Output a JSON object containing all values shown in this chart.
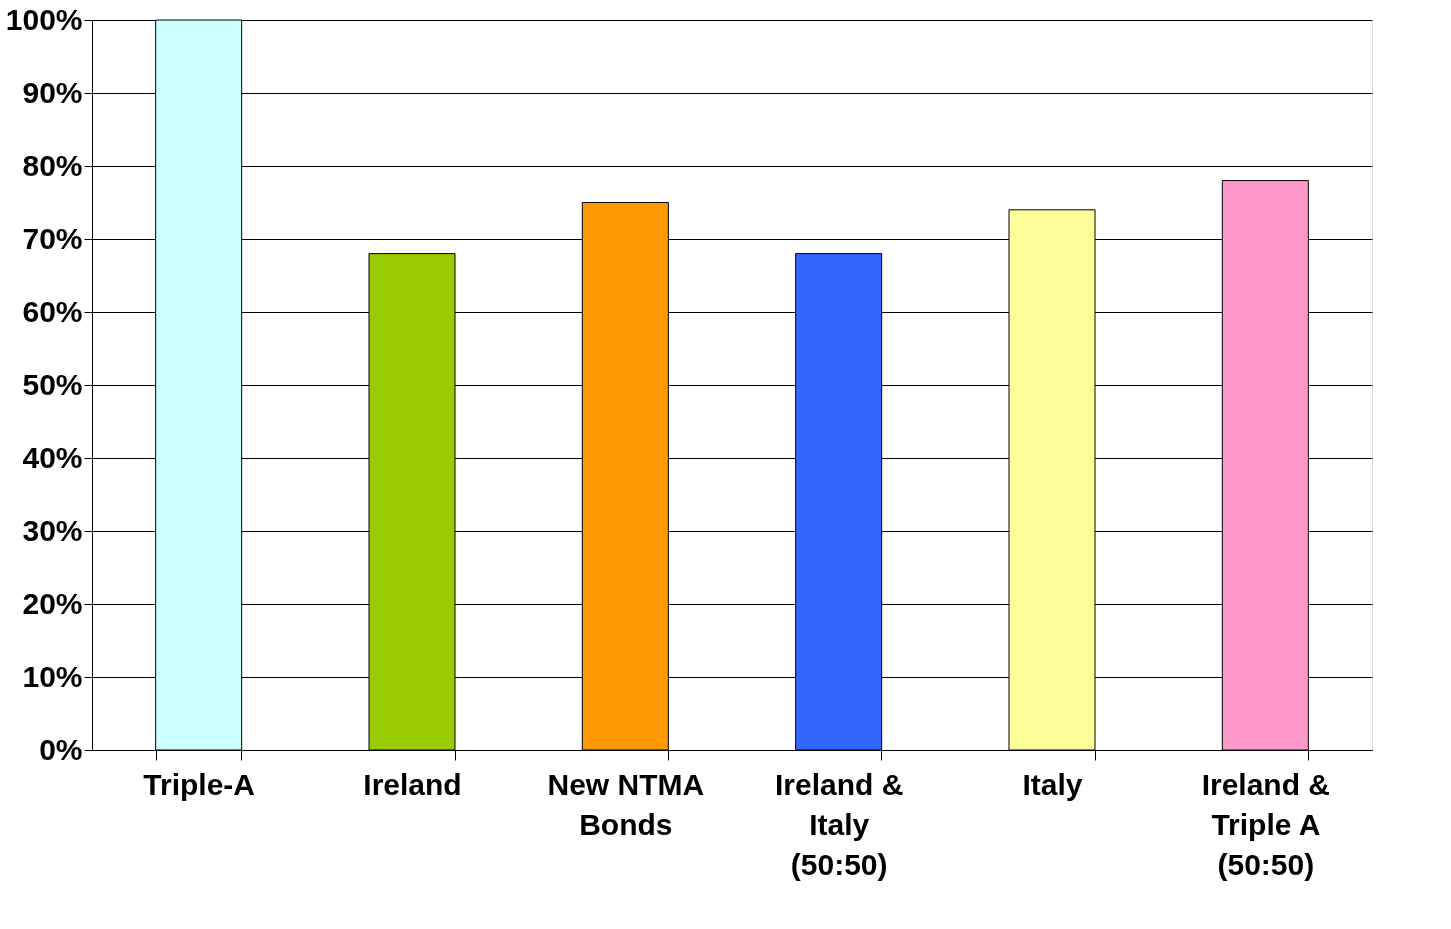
{
  "chart_data": {
    "type": "bar",
    "categories": [
      "Triple-A",
      "Ireland",
      "New NTMA Bonds",
      "Ireland & Italy (50:50)",
      "Italy",
      "Ireland & Triple A (50:50)"
    ],
    "values": [
      100,
      68,
      75,
      68,
      74,
      78
    ],
    "colors": [
      "#ccffff",
      "#99cc00",
      "#ff9900",
      "#3366ff",
      "#ffff99",
      "#ff99cc"
    ],
    "ylim": [
      0,
      100
    ],
    "yticks": [
      {
        "value": 0,
        "label": "0%"
      },
      {
        "value": 10,
        "label": "10%"
      },
      {
        "value": 20,
        "label": "20%"
      },
      {
        "value": 30,
        "label": "30%"
      },
      {
        "value": 40,
        "label": "40%"
      },
      {
        "value": 50,
        "label": "50%"
      },
      {
        "value": 60,
        "label": "60%"
      },
      {
        "value": 70,
        "label": "70%"
      },
      {
        "value": 80,
        "label": "80%"
      },
      {
        "value": 90,
        "label": "90%"
      },
      {
        "value": 100,
        "label": "100%"
      }
    ],
    "grid": "y"
  }
}
